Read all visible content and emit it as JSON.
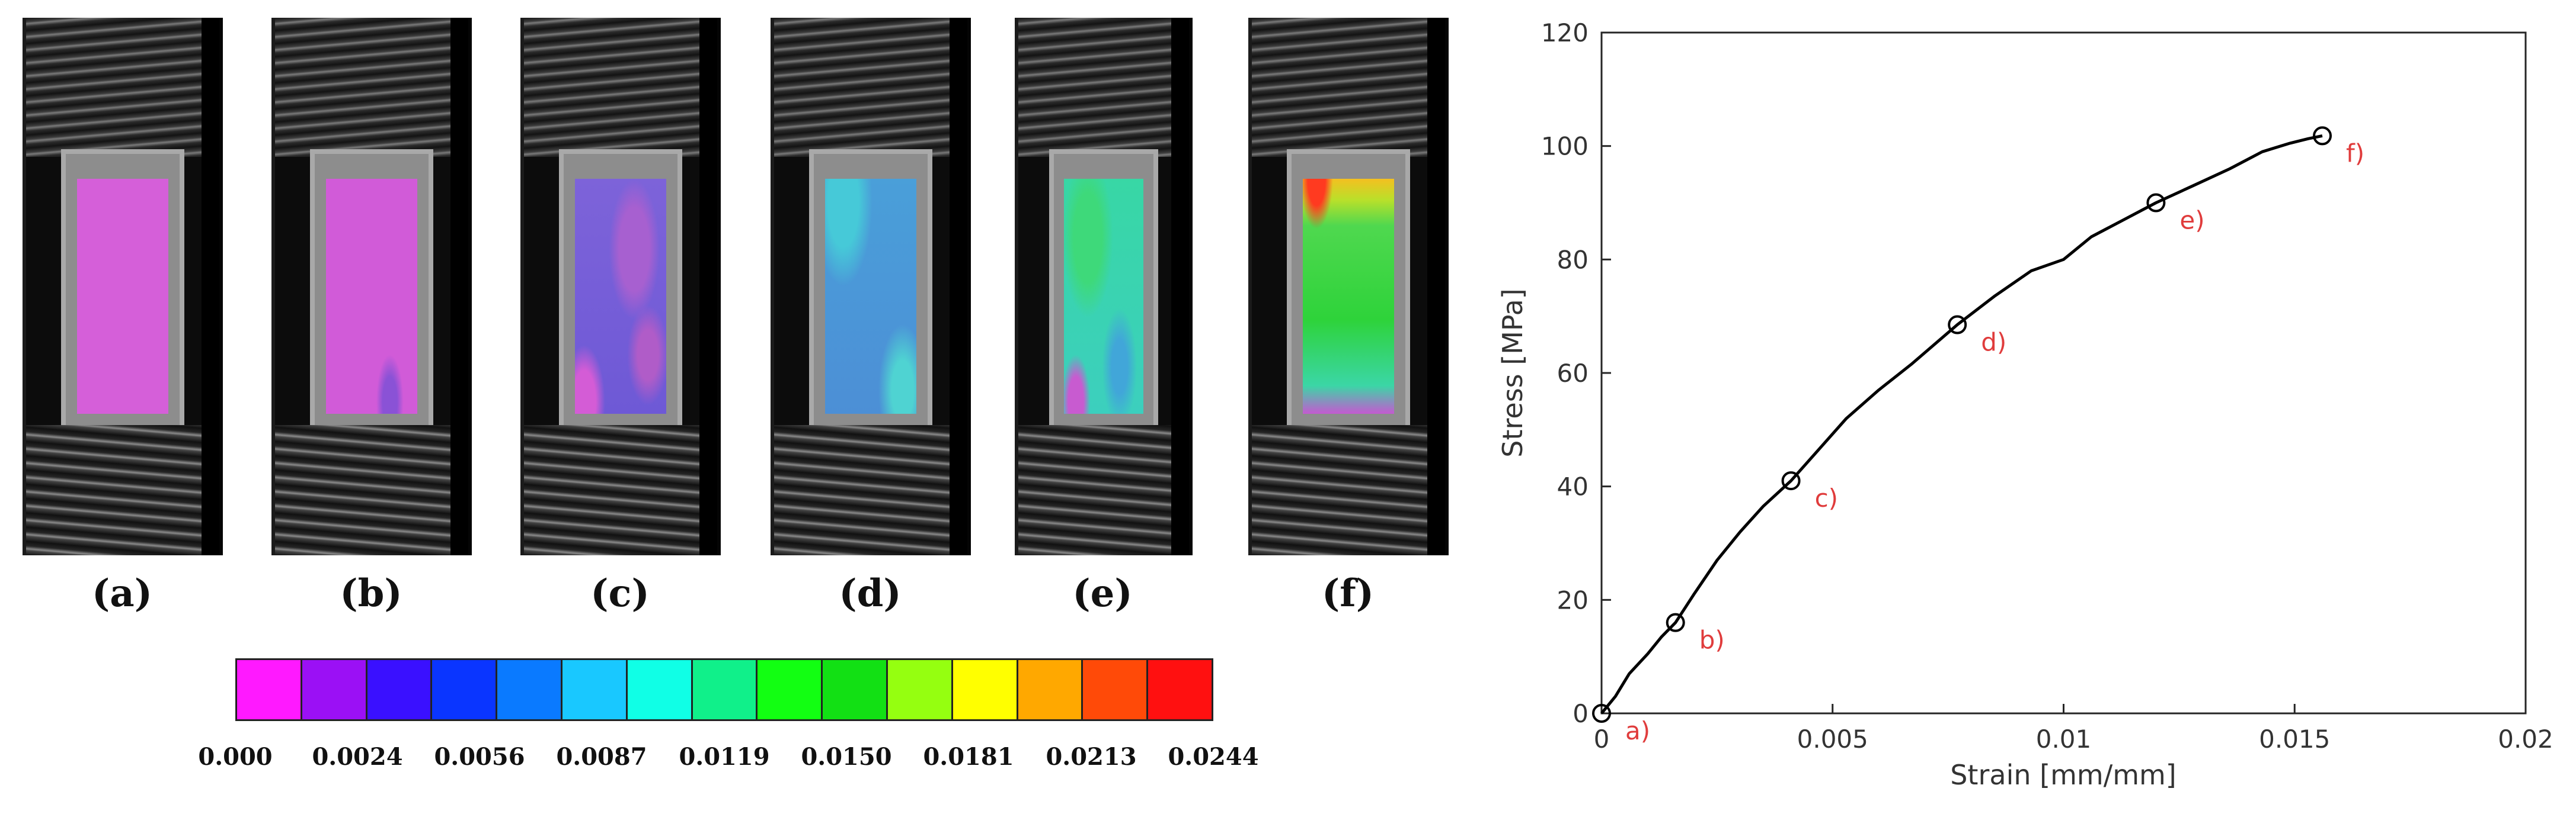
{
  "panels": [
    {
      "label": "(a)"
    },
    {
      "label": "(b)"
    },
    {
      "label": "(c)"
    },
    {
      "label": "(d)"
    },
    {
      "label": "(e)"
    },
    {
      "label": "(f)"
    }
  ],
  "colorbar": {
    "colors": [
      "#ff19ff",
      "#9b10f5",
      "#3a10ff",
      "#0a35ff",
      "#0a7aff",
      "#19c8ff",
      "#10ffe6",
      "#10f08a",
      "#12ff12",
      "#12e014",
      "#95ff10",
      "#ffff00",
      "#ffa800",
      "#ff4a08",
      "#ff1010"
    ],
    "tick_labels": [
      "0.000",
      "0.0024",
      "0.0056",
      "0.0087",
      "0.0119",
      "0.0150",
      "0.0181",
      "0.0213",
      "0.0244"
    ]
  },
  "chart_data": {
    "type": "line",
    "xlabel": "Strain [mm/mm]",
    "ylabel": "Stress [MPa]",
    "xlim": [
      0,
      0.02
    ],
    "ylim": [
      0,
      120
    ],
    "x_ticks": [
      0,
      0.005,
      0.01,
      0.015,
      0.02
    ],
    "x_tick_labels": [
      "0",
      "0.005",
      "0.01",
      "0.015",
      "0.02"
    ],
    "y_ticks": [
      0,
      20,
      40,
      60,
      80,
      100,
      120
    ],
    "y_tick_labels": [
      "0",
      "20",
      "40",
      "60",
      "80",
      "100",
      "120"
    ],
    "series": [
      {
        "name": "stress-strain",
        "color": "#000000",
        "x": [
          0,
          0.0003,
          0.0006,
          0.001,
          0.0013,
          0.0016,
          0.002,
          0.0025,
          0.003,
          0.0035,
          0.0041,
          0.0047,
          0.0053,
          0.006,
          0.0067,
          0.0077,
          0.0085,
          0.0093,
          0.01,
          0.0106,
          0.0113,
          0.012,
          0.0128,
          0.0136,
          0.0143,
          0.0149,
          0.0153,
          0.0156
        ],
        "y": [
          0,
          3,
          7,
          10.5,
          13.5,
          16,
          21,
          27,
          32,
          36.5,
          41,
          46.5,
          52,
          57,
          61.5,
          68.5,
          73.5,
          78,
          80,
          84,
          87,
          90,
          93,
          96,
          99,
          100.5,
          101.3,
          101.8
        ]
      }
    ],
    "markers": [
      {
        "label": "a)",
        "x": 0,
        "y": 0
      },
      {
        "label": "b)",
        "x": 0.0016,
        "y": 16
      },
      {
        "label": "c)",
        "x": 0.0041,
        "y": 41
      },
      {
        "label": "d)",
        "x": 0.0077,
        "y": 68.5
      },
      {
        "label": "e)",
        "x": 0.012,
        "y": 90
      },
      {
        "label": "f)",
        "x": 0.0156,
        "y": 101.8
      }
    ],
    "marker_label_color": "#e03c3c"
  }
}
